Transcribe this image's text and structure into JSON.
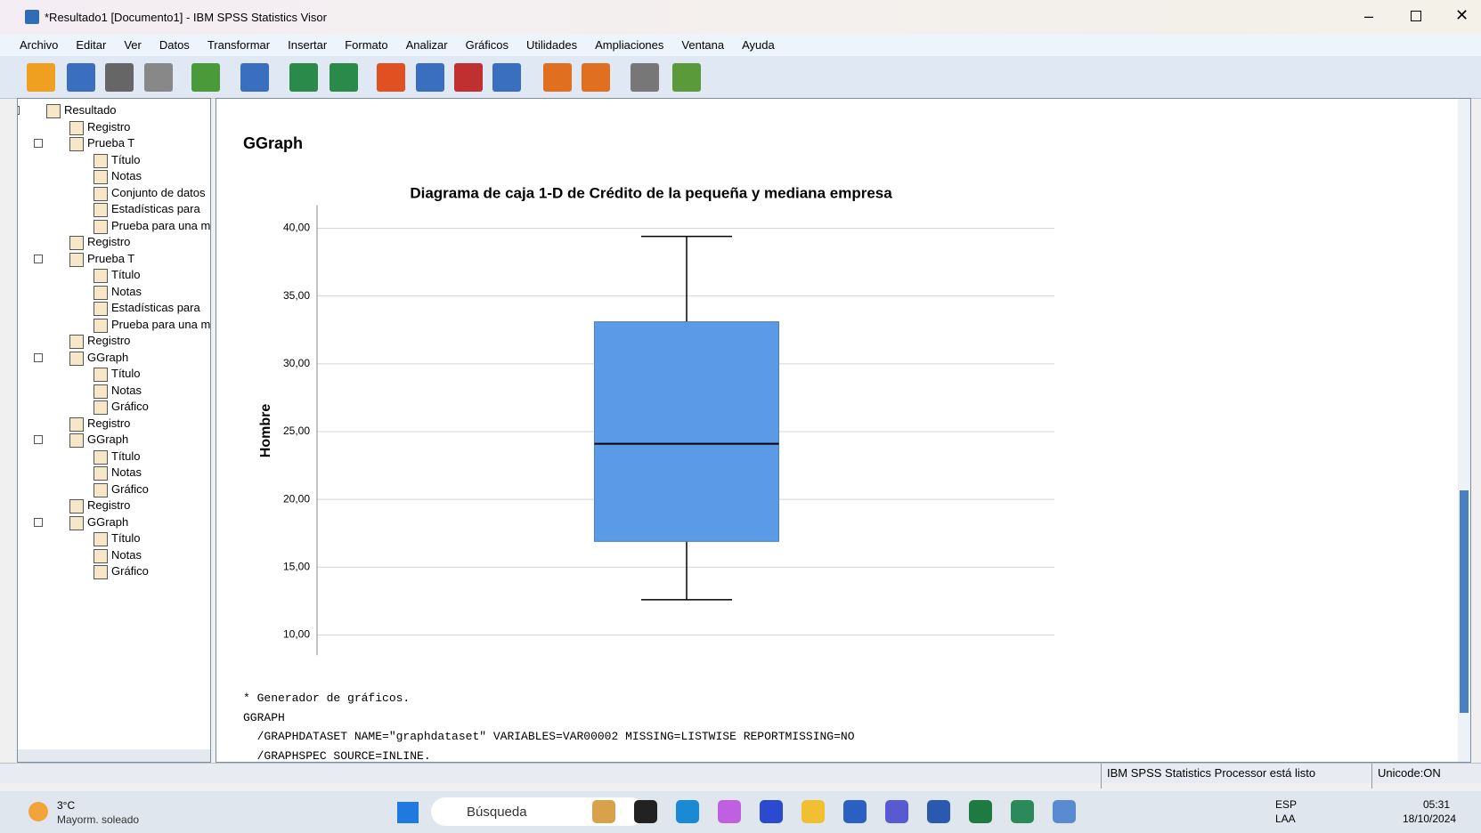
{
  "window": {
    "title": "*Resultado1 [Documento1] - IBM SPSS Statistics Visor"
  },
  "menu": [
    "Archivo",
    "Editar",
    "Ver",
    "Datos",
    "Transformar",
    "Insertar",
    "Formato",
    "Analizar",
    "Gráficos",
    "Utilidades",
    "Ampliaciones",
    "Ventana",
    "Ayuda"
  ],
  "tree": {
    "label": "Resultado",
    "children": [
      {
        "label": "Registro"
      },
      {
        "label": "Prueba T",
        "children": [
          {
            "label": "Título"
          },
          {
            "label": "Notas"
          },
          {
            "label": "Conjunto de datos"
          },
          {
            "label": "Estadísticas para"
          },
          {
            "label": "Prueba para una m"
          }
        ]
      },
      {
        "label": "Registro"
      },
      {
        "label": "Prueba T",
        "children": [
          {
            "label": "Título"
          },
          {
            "label": "Notas"
          },
          {
            "label": "Estadísticas para"
          },
          {
            "label": "Prueba para una m"
          }
        ]
      },
      {
        "label": "Registro"
      },
      {
        "label": "GGraph",
        "children": [
          {
            "label": "Título"
          },
          {
            "label": "Notas"
          },
          {
            "label": "Gráfico"
          }
        ]
      },
      {
        "label": "Registro"
      },
      {
        "label": "GGraph",
        "children": [
          {
            "label": "Título"
          },
          {
            "label": "Notas"
          },
          {
            "label": "Gráfico"
          }
        ]
      },
      {
        "label": "Registro"
      },
      {
        "label": "GGraph",
        "children": [
          {
            "label": "Título"
          },
          {
            "label": "Notas"
          },
          {
            "label": "Gráfico"
          }
        ]
      }
    ]
  },
  "output": {
    "heading": "GGraph",
    "chart_data": {
      "type": "box",
      "title": "Diagrama de caja 1-D de Crédito de la pequeña y mediana empresa",
      "y_label": "Hombre",
      "color": "#5a9ae6",
      "min": 12.6,
      "q1": 16.9,
      "median": 24.1,
      "q3": 33.1,
      "max": 39.4,
      "ylim": [
        8.5,
        41.7
      ],
      "yticks": [
        {
          "value": 10,
          "label": "10,00"
        },
        {
          "value": 15,
          "label": "15,00"
        },
        {
          "value": 20,
          "label": "20,00"
        },
        {
          "value": 25,
          "label": "25,00"
        },
        {
          "value": 30,
          "label": "30,00"
        },
        {
          "value": 35,
          "label": "35,00"
        },
        {
          "value": 40,
          "label": "40,00"
        }
      ],
      "grid": true
    },
    "syntax": [
      "* Generador de gráficos.",
      "GGRAPH",
      "  /GRAPHDATASET NAME=\"graphdataset\" VARIABLES=VAR00002 MISSING=LISTWISE REPORTMISSING=NO",
      "  /GRAPHSPEC SOURCE=INLINE."
    ]
  },
  "status": {
    "message": "IBM SPSS Statistics Processor está listo",
    "encoding": "Unicode:ON"
  },
  "taskbar": {
    "temperature": "3°C",
    "weather": "Mayorm. soleado",
    "search": "Búsqueda",
    "language": "ESP",
    "layout": "LAA",
    "time": "05:31",
    "date": "18/10/2024"
  }
}
